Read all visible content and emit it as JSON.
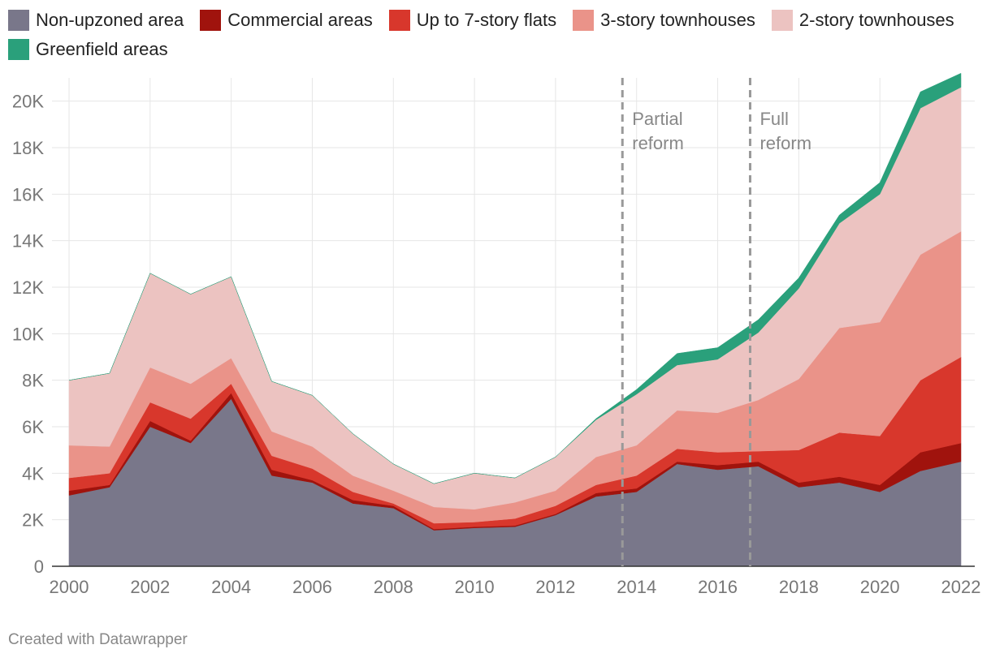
{
  "chart_data": {
    "type": "area",
    "stacked": true,
    "title": "",
    "xlabel": "",
    "ylabel": "",
    "x": [
      2000,
      2001,
      2002,
      2003,
      2004,
      2005,
      2006,
      2007,
      2008,
      2009,
      2010,
      2011,
      2012,
      2013,
      2014,
      2015,
      2016,
      2017,
      2018,
      2019,
      2020,
      2021,
      2022
    ],
    "ylim": [
      0,
      21000
    ],
    "y_ticks": [
      0,
      2000,
      4000,
      6000,
      8000,
      10000,
      12000,
      14000,
      16000,
      18000,
      20000
    ],
    "y_tick_labels": [
      "0",
      "2K",
      "4K",
      "6K",
      "8K",
      "10K",
      "12K",
      "14K",
      "16K",
      "18K",
      "20K"
    ],
    "x_ticks": [
      2000,
      2002,
      2004,
      2006,
      2008,
      2010,
      2012,
      2014,
      2016,
      2018,
      2020,
      2022
    ],
    "x_tick_labels": [
      "2000",
      "2002",
      "2004",
      "2006",
      "2008",
      "2010",
      "2012",
      "2014",
      "2016",
      "2018",
      "2020",
      "2022"
    ],
    "series": [
      {
        "name": "Non-upzoned area",
        "color": "#79778a",
        "values": [
          3050,
          3400,
          6000,
          5300,
          7200,
          3900,
          3600,
          2700,
          2500,
          1550,
          1650,
          1700,
          2200,
          3000,
          3200,
          4400,
          4150,
          4300,
          3400,
          3600,
          3200,
          4100,
          4500
        ]
      },
      {
        "name": "Commercial areas",
        "color": "#a0130d",
        "values": [
          200,
          100,
          250,
          100,
          250,
          250,
          100,
          150,
          100,
          50,
          50,
          50,
          50,
          150,
          150,
          100,
          200,
          200,
          200,
          250,
          300,
          800,
          800
        ]
      },
      {
        "name": "Up to 7-story flats",
        "color": "#d8372c",
        "values": [
          550,
          500,
          800,
          950,
          400,
          600,
          500,
          350,
          100,
          250,
          200,
          300,
          350,
          350,
          550,
          550,
          550,
          450,
          1400,
          1900,
          2100,
          3100,
          3700
        ]
      },
      {
        "name": "3-story townhouses",
        "color": "#ea9389",
        "values": [
          1400,
          1150,
          1500,
          1500,
          1100,
          1050,
          950,
          700,
          550,
          700,
          550,
          700,
          650,
          1200,
          1300,
          1650,
          1700,
          2200,
          3050,
          4500,
          4900,
          5400,
          5400
        ]
      },
      {
        "name": "2-story townhouses",
        "color": "#ecc3c1",
        "values": [
          2800,
          3150,
          4050,
          3850,
          3500,
          2150,
          2200,
          1800,
          1150,
          1000,
          1550,
          1050,
          1450,
          1600,
          2200,
          1950,
          2300,
          2900,
          3900,
          4500,
          5500,
          6300,
          6200
        ]
      },
      {
        "name": "Greenfield areas",
        "color": "#2aa07b",
        "values": [
          0,
          0,
          0,
          0,
          0,
          0,
          0,
          0,
          0,
          0,
          0,
          0,
          0,
          50,
          200,
          500,
          500,
          550,
          450,
          350,
          500,
          700,
          600
        ]
      }
    ],
    "annotations": [
      {
        "x": 2013.65,
        "label_lines": [
          "Partial",
          "reform"
        ]
      },
      {
        "x": 2016.8,
        "label_lines": [
          "Full",
          "reform"
        ]
      }
    ],
    "grid": true,
    "legend_position": "top"
  },
  "footer": {
    "credit": "Created with Datawrapper"
  }
}
